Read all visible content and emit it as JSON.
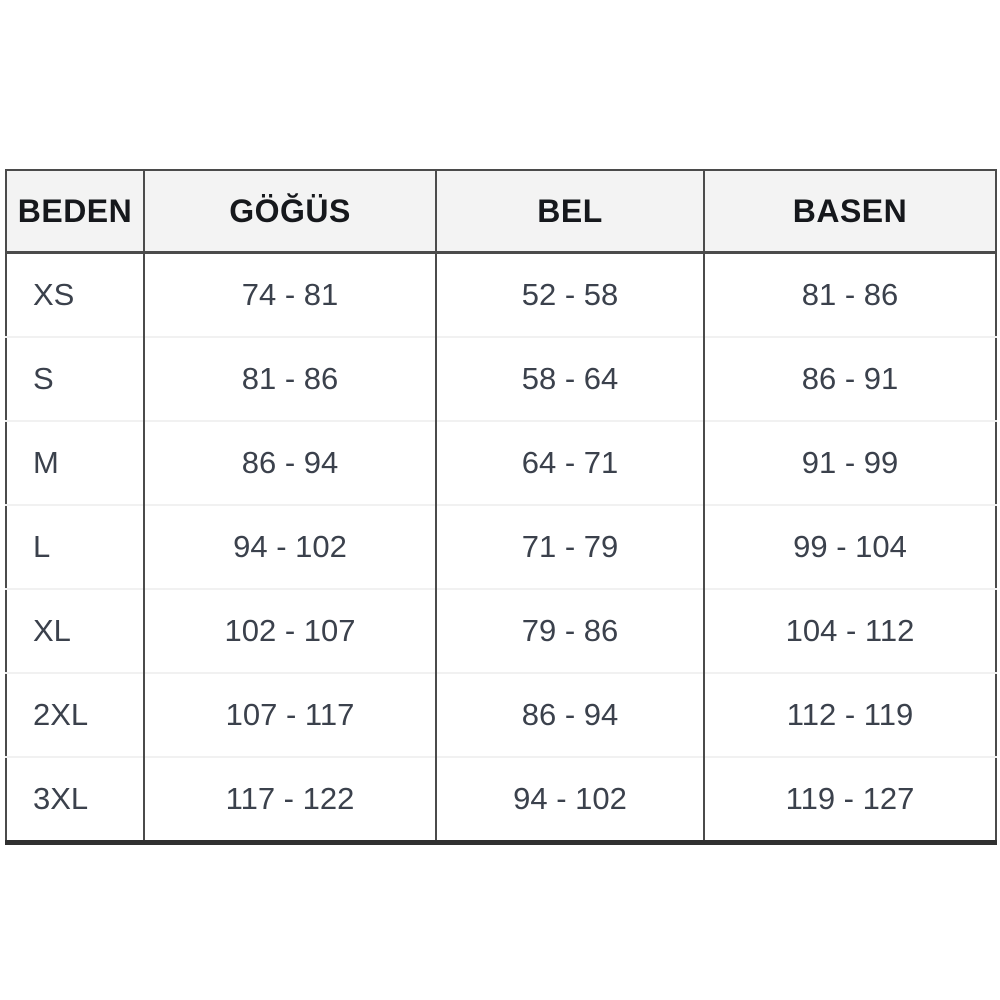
{
  "chart_data": {
    "type": "table",
    "columns": [
      "BEDEN",
      "GÖĞÜS",
      "BEL",
      "BASEN"
    ],
    "rows": [
      [
        "XS",
        "74 - 81",
        "52 - 58",
        "81 - 86"
      ],
      [
        "S",
        "81 - 86",
        "58 - 64",
        "86 - 91"
      ],
      [
        "M",
        "86 - 94",
        "64 - 71",
        "91 - 99"
      ],
      [
        "L",
        "94 - 102",
        "71 - 79",
        "99 - 104"
      ],
      [
        "XL",
        "102 - 107",
        "79 - 86",
        "104 - 112"
      ],
      [
        "2XL",
        "107 - 117",
        "86 - 94",
        "112 - 119"
      ],
      [
        "3XL",
        "117 - 122",
        "94 - 102",
        "119 - 127"
      ]
    ]
  },
  "colors": {
    "page_bg": "#ffffff",
    "header_bg": "#f3f3f3",
    "border_dark": "#4b4b4b",
    "border_bottom_thick": "#303030",
    "row_divider": "#f1f1f1",
    "header_text": "#16181c",
    "cell_text": "#3b414c"
  }
}
